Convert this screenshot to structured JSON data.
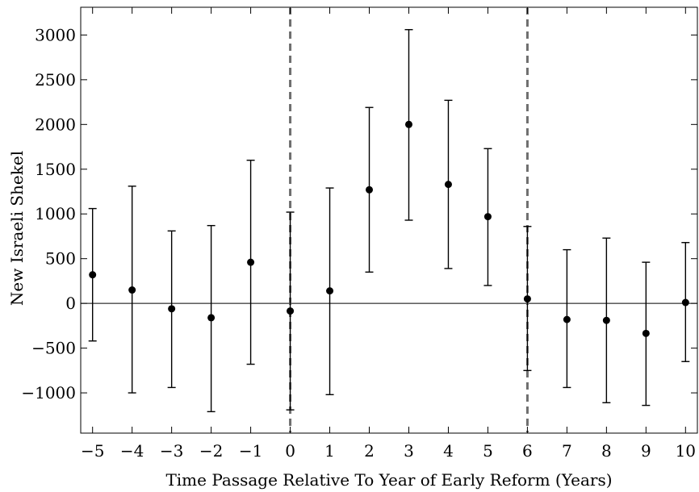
{
  "chart_data": {
    "type": "scatter",
    "title": "",
    "xlabel": "Time Passage Relative To Year of Early Reform (Years)",
    "ylabel": "New Israeli Shekel",
    "xlim": [
      -5.3,
      10.3
    ],
    "ylim": [
      -1450,
      3310
    ],
    "xticks": [
      -5,
      -4,
      -3,
      -2,
      -1,
      0,
      1,
      2,
      3,
      4,
      5,
      6,
      7,
      8,
      9,
      10
    ],
    "xtick_labels": [
      "−5",
      "−4",
      "−3",
      "−2",
      "−1",
      "0",
      "1",
      "2",
      "3",
      "4",
      "5",
      "6",
      "7",
      "8",
      "9",
      "10"
    ],
    "yticks": [
      -1000,
      -500,
      0,
      500,
      1000,
      1500,
      2000,
      2500,
      3000
    ],
    "ytick_labels": [
      "−1000",
      "−500",
      "0",
      "500",
      "1000",
      "1500",
      "2000",
      "2500",
      "3000"
    ],
    "reference_hline": 0,
    "vertical_dashed_lines": [
      0,
      6
    ],
    "grid": false,
    "series": [
      {
        "x": [
          -5,
          -4,
          -3,
          -2,
          -1,
          0,
          1,
          2,
          3,
          4,
          5,
          6,
          7,
          8,
          9,
          10
        ],
        "y": [
          320,
          150,
          -60,
          -160,
          460,
          -85,
          140,
          1270,
          2000,
          1330,
          970,
          50,
          -180,
          -190,
          -335,
          10
        ],
        "lower": [
          -420,
          -1000,
          -940,
          -1210,
          -680,
          -1190,
          -1020,
          350,
          930,
          390,
          200,
          -750,
          -940,
          -1110,
          -1140,
          -650
        ],
        "upper": [
          1060,
          1310,
          810,
          870,
          1600,
          1020,
          1290,
          2190,
          3060,
          2270,
          1730,
          860,
          600,
          730,
          460,
          680
        ]
      }
    ]
  }
}
